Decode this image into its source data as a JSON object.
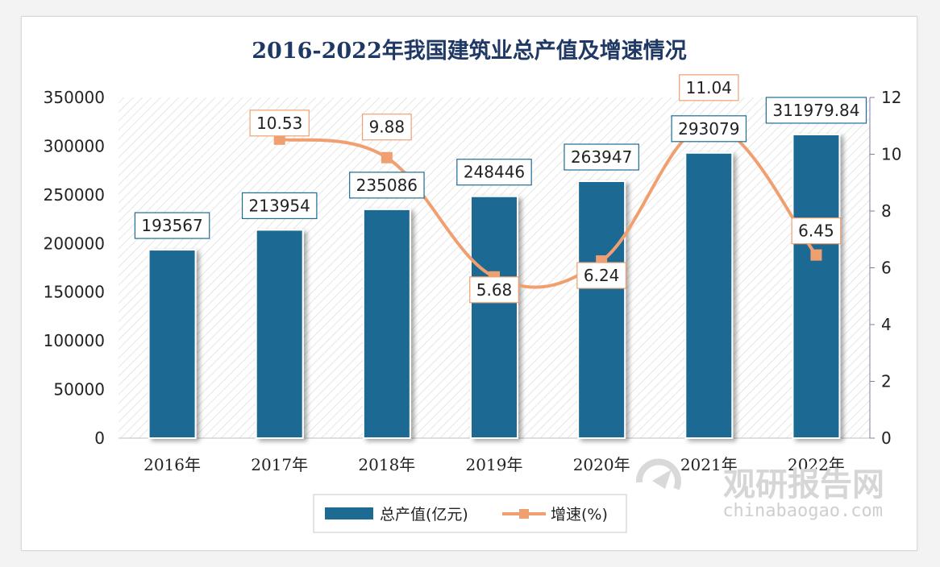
{
  "chart_data": {
    "type": "bar",
    "title": "2016-2022年我国建筑业总产值及增速情况",
    "categories": [
      "2016年",
      "2017年",
      "2018年",
      "2019年",
      "2020年",
      "2021年",
      "2022年"
    ],
    "series": [
      {
        "name": "总产值(亿元)",
        "type": "bar",
        "axis": "left",
        "values": [
          193567,
          213954,
          235086,
          248446,
          263947,
          293079,
          311979.84
        ],
        "labels": [
          "193567",
          "213954",
          "235086",
          "248446",
          "263947",
          "293079",
          "311979.84"
        ],
        "color": "#1d6b93"
      },
      {
        "name": "增速(%)",
        "type": "line",
        "axis": "right",
        "values": [
          null,
          10.53,
          9.88,
          5.68,
          6.24,
          11.04,
          6.45
        ],
        "labels": [
          "",
          "10.53",
          "9.88",
          "5.68",
          "6.24",
          "11.04",
          "6.45"
        ],
        "color": "#f0a070"
      }
    ],
    "y_left": {
      "min": 0,
      "max": 350000,
      "ticks": [
        "0",
        "50000",
        "100000",
        "150000",
        "200000",
        "250000",
        "300000",
        "350000"
      ]
    },
    "y_right": {
      "min": 0,
      "max": 12,
      "ticks": [
        "0",
        "2",
        "4",
        "6",
        "8",
        "10",
        "12"
      ]
    },
    "legend_position": "bottom",
    "background": "diagonal-hatch"
  },
  "watermark": {
    "brand": "观研报告网",
    "url": "chinabaogao.com"
  }
}
